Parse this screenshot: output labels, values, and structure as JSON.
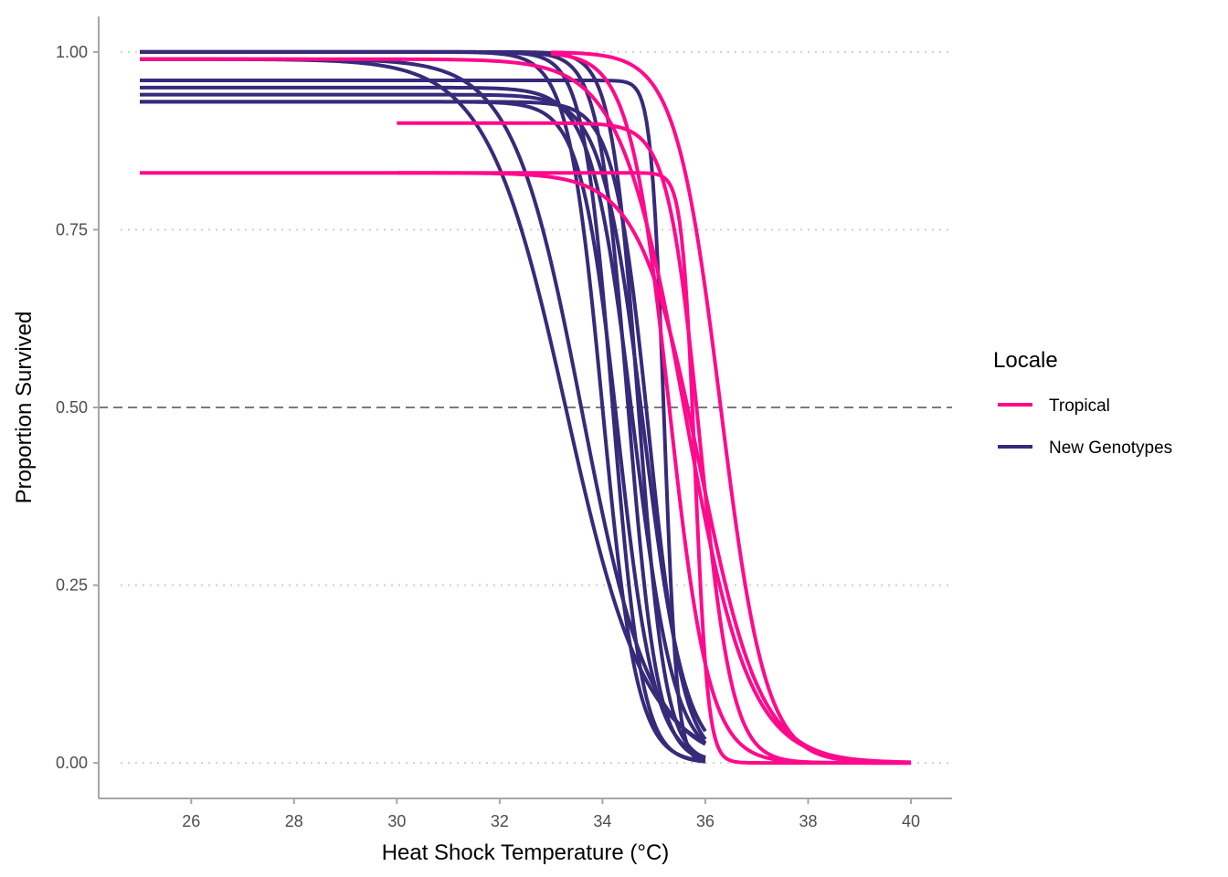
{
  "chart_data": {
    "type": "line",
    "xlabel": "Heat Shock Temperature (°C)",
    "ylabel": "Proportion Survived",
    "xlim": [
      24.2,
      40.8
    ],
    "ylim": [
      -0.05,
      1.05
    ],
    "x_ticks": [
      26,
      28,
      30,
      32,
      34,
      36,
      38,
      40
    ],
    "x_tick_labels": [
      "26",
      "28",
      "30",
      "32",
      "34",
      "36",
      "38",
      "40"
    ],
    "y_ticks": [
      0,
      0.25,
      0.5,
      0.75,
      1.0
    ],
    "y_tick_labels": [
      "0.00",
      "0.25",
      "0.50",
      "0.75",
      "1.00"
    ],
    "y_grid": "dotted horizontal at y ticks",
    "reference_line": {
      "y": 0.5,
      "style": "dashed"
    },
    "legend": {
      "title": "Locale",
      "position": "right",
      "entries": [
        {
          "label": "Tropical",
          "color": "#ff0a8c"
        },
        {
          "label": "New Genotypes",
          "color": "#372a7a"
        }
      ]
    },
    "series": [
      {
        "group": "New Genotypes",
        "x_range": [
          25,
          36
        ],
        "top": 1.0,
        "midpoint": 34.0,
        "slope": 3.0
      },
      {
        "group": "New Genotypes",
        "x_range": [
          25,
          36
        ],
        "top": 1.0,
        "midpoint": 34.2,
        "slope": 3.5
      },
      {
        "group": "New Genotypes",
        "x_range": [
          25,
          36
        ],
        "top": 1.0,
        "midpoint": 34.5,
        "slope": 3.5
      },
      {
        "group": "New Genotypes",
        "x_range": [
          25,
          36
        ],
        "top": 1.0,
        "midpoint": 34.7,
        "slope": 3.8
      },
      {
        "group": "New Genotypes",
        "x_range": [
          25,
          36
        ],
        "top": 0.99,
        "midpoint": 33.3,
        "slope": 1.3
      },
      {
        "group": "New Genotypes",
        "x_range": [
          25,
          36
        ],
        "top": 0.99,
        "midpoint": 33.6,
        "slope": 1.5
      },
      {
        "group": "New Genotypes",
        "x_range": [
          25,
          36
        ],
        "top": 0.96,
        "midpoint": 35.2,
        "slope": 8.0
      },
      {
        "group": "New Genotypes",
        "x_range": [
          25,
          36
        ],
        "top": 0.95,
        "midpoint": 34.6,
        "slope": 2.5
      },
      {
        "group": "New Genotypes",
        "x_range": [
          25,
          36
        ],
        "top": 0.94,
        "midpoint": 34.8,
        "slope": 2.5
      },
      {
        "group": "New Genotypes",
        "x_range": [
          25,
          36
        ],
        "top": 0.93,
        "midpoint": 34.9,
        "slope": 3.0
      },
      {
        "group": "New Genotypes",
        "x_range": [
          25,
          36
        ],
        "top": 0.93,
        "midpoint": 34.3,
        "slope": 2.8
      },
      {
        "group": "Tropical",
        "x_range": [
          25,
          40
        ],
        "top": 0.99,
        "midpoint": 35.6,
        "slope": 1.6
      },
      {
        "group": "Tropical",
        "x_range": [
          25,
          40
        ],
        "top": 0.83,
        "midpoint": 35.9,
        "slope": 1.7
      },
      {
        "group": "Tropical",
        "x_range": [
          30,
          40
        ],
        "top": 0.9,
        "midpoint": 35.9,
        "slope": 3.2
      },
      {
        "group": "Tropical",
        "x_range": [
          30,
          40
        ],
        "top": 0.83,
        "midpoint": 35.8,
        "slope": 8.0
      },
      {
        "group": "Tropical",
        "x_range": [
          33,
          40
        ],
        "top": 1.0,
        "midpoint": 35.3,
        "slope": 2.6
      },
      {
        "group": "Tropical",
        "x_range": [
          33,
          40
        ],
        "top": 1.0,
        "midpoint": 36.3,
        "slope": 2.3
      }
    ]
  },
  "colors": {
    "tropical": "#ff0a8c",
    "new_genotypes": "#372a7a",
    "axis": "#a6a6a6",
    "grid": "#d0d0d0",
    "reference": "#7a7a7a"
  }
}
